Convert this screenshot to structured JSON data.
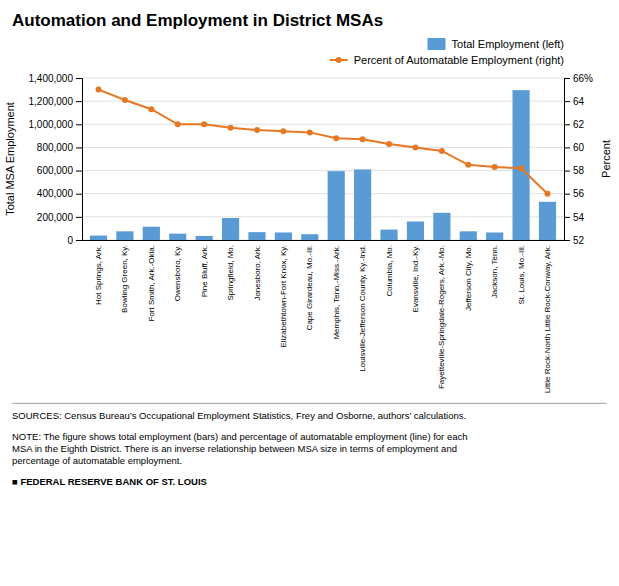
{
  "chart_data": {
    "type": "bar",
    "title": "Automation and Employment in District MSAs",
    "ylabel": "Total MSA Employment",
    "y2label": "Percent",
    "categories": [
      "Hot Springs, Ark.",
      "Bowling Green, Ky.",
      "Fort Smith, Ark.-Okla.",
      "Owensboro, Ky.",
      "Pine Bluff, Ark.",
      "Springfield, Mo.",
      "Jonesboro, Ark.",
      "Elizabethtown-Fort Knox, Ky.",
      "Cape Girardeau, Mo.-Ill.",
      "Memphis, Tenn.-Miss.-Ark.",
      "Louisville-Jefferson County, Ky.-Ind.",
      "Columbia, Mo.",
      "Evansville, Ind.-Ky.",
      "Fayetteville-Springdale-Rogers, Ark.-Mo.",
      "Jefferson City, Mo.",
      "Jackson, Tenn.",
      "St. Louis, Mo.-Ill.",
      "Little Rock-North Little Rock-Conway, Ark."
    ],
    "series": [
      {
        "name": "Total Employment (left)",
        "type": "bar",
        "color": "#5b9bd5",
        "values": [
          38000,
          75000,
          115000,
          55000,
          35000,
          190000,
          68000,
          65000,
          50000,
          595000,
          610000,
          90000,
          160000,
          235000,
          75000,
          65000,
          1295000,
          330000
        ]
      },
      {
        "name": "Percent of Automatable Employment (right)",
        "type": "line",
        "color": "#e87722",
        "marker": "circle",
        "axis": "y2",
        "values": [
          65.0,
          64.1,
          63.3,
          62.0,
          62.0,
          61.7,
          61.5,
          61.4,
          61.3,
          60.8,
          60.7,
          60.3,
          60.0,
          59.7,
          58.5,
          58.3,
          58.2,
          56.0
        ]
      }
    ],
    "ylim": [
      0,
      1400000
    ],
    "yticks": [
      0,
      {
        "value": 200000,
        "label": "200,000"
      },
      {
        "value": 400000,
        "label": "400,000"
      },
      {
        "value": 600000,
        "label": "600,000"
      },
      {
        "value": 800000,
        "label": "800,000"
      },
      {
        "value": 1000000,
        "label": "1,000,000"
      },
      {
        "value": 1200000,
        "label": "1,200,000"
      },
      {
        "value": 1400000,
        "label": "1,400,000"
      }
    ],
    "y2lim": [
      52,
      66
    ],
    "y2ticks": [
      52,
      54,
      56,
      58,
      60,
      62,
      64,
      {
        "value": 66,
        "label": "66%"
      }
    ],
    "grid": true,
    "legend": "upper right",
    "annotations": [
      "SOURCES:  Census Bureau’s Occupational Employment Statistics, Frey and Osborne, authors’ calculations.",
      "NOTE: The figure shows total employment (bars) and percentage of automatable employment (line) for each\nMSA in the Eighth District. There is an inverse relationship between MSA size in terms of employment and\npercentage of automatable employment.",
      "■  FEDERAL RESERVE BANK OF ST. LOUIS"
    ]
  }
}
